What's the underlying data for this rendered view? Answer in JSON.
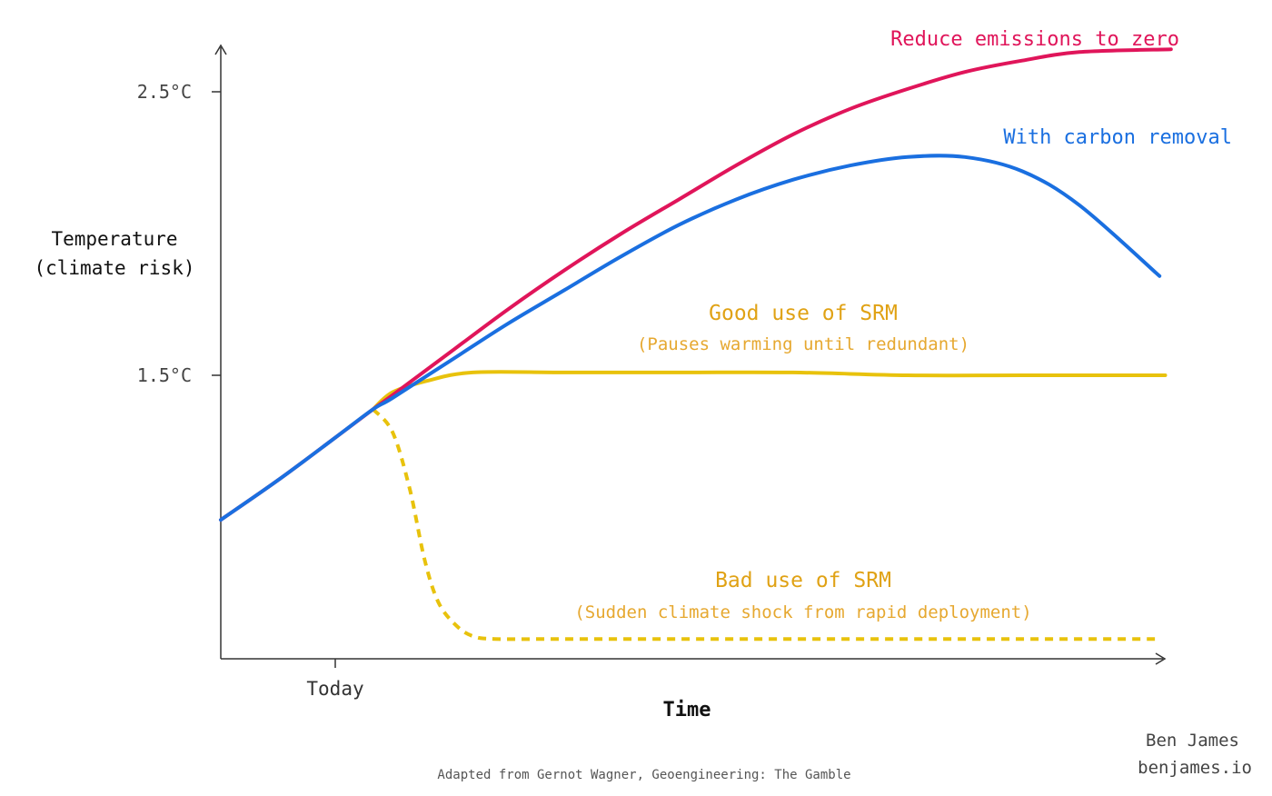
{
  "chart_data": {
    "type": "line",
    "xlabel": "Time",
    "ylabel_lines": [
      "Temperature",
      "(climate risk)"
    ],
    "x_ticks": [
      {
        "x": 0,
        "label": "Today"
      }
    ],
    "y_ticks": [
      {
        "y": 2.5,
        "label": "2.5°C"
      },
      {
        "y": 1.5,
        "label": "1.5°C"
      }
    ],
    "xlim": [
      -1,
      7.3
    ],
    "ylim": [
      0.5,
      2.65
    ],
    "series": [
      {
        "name": "Reduce emissions to zero",
        "color": "#e0155a",
        "style": "solid",
        "x": [
          -1,
          -0.5,
          0,
          0.33,
          0.5,
          1,
          1.5,
          2,
          2.5,
          3,
          3.5,
          4,
          4.5,
          5,
          5.5,
          6,
          6.5,
          7.3
        ],
        "y": [
          0.99,
          1.13,
          1.28,
          1.38,
          1.43,
          1.58,
          1.73,
          1.87,
          2.0,
          2.12,
          2.24,
          2.35,
          2.44,
          2.51,
          2.57,
          2.61,
          2.64,
          2.65
        ]
      },
      {
        "name": "With carbon removal",
        "color": "#1a6fe0",
        "style": "solid",
        "x": [
          -1,
          -0.5,
          0,
          0.33,
          0.5,
          1,
          1.5,
          2,
          2.5,
          3,
          3.5,
          4,
          4.5,
          5,
          5.5,
          6,
          6.5,
          7.2
        ],
        "y": [
          0.99,
          1.13,
          1.28,
          1.38,
          1.42,
          1.55,
          1.68,
          1.8,
          1.92,
          2.03,
          2.12,
          2.19,
          2.24,
          2.27,
          2.27,
          2.22,
          2.1,
          1.85
        ]
      },
      {
        "name": "Good use of SRM",
        "color": "#e8c20c",
        "style": "solid",
        "x": [
          0.33,
          0.5,
          0.8,
          1.2,
          2,
          3,
          4,
          5,
          6,
          7.25
        ],
        "y": [
          1.38,
          1.44,
          1.48,
          1.51,
          1.51,
          1.51,
          1.51,
          1.5,
          1.5,
          1.5
        ]
      },
      {
        "name": "Bad use of SRM",
        "color": "#e8c20c",
        "style": "dashed",
        "x": [
          0.33,
          0.5,
          0.65,
          0.78,
          0.9,
          1.05,
          1.2,
          1.4,
          2,
          3,
          4,
          5,
          6,
          7.2
        ],
        "y": [
          1.38,
          1.3,
          1.1,
          0.85,
          0.7,
          0.62,
          0.58,
          0.57,
          0.57,
          0.57,
          0.57,
          0.57,
          0.57,
          0.57
        ]
      }
    ],
    "annotations": [
      {
        "text": "Reduce emissions to zero",
        "color": "#e0155a",
        "weight": "normal"
      },
      {
        "text": "With carbon removal",
        "color": "#1a6fe0",
        "weight": "normal"
      },
      {
        "text": "Good use of SRM",
        "color": "#e0a215",
        "weight": "normal"
      },
      {
        "text": "(Pauses warming until redundant)",
        "color": "#e0a215",
        "weight": "light"
      },
      {
        "text": "Bad use of SRM",
        "color": "#e0a215",
        "weight": "normal"
      },
      {
        "text": "(Sudden climate shock from rapid deployment)",
        "color": "#e0a215",
        "weight": "light"
      }
    ],
    "grid": false,
    "legend": "none"
  },
  "credit": {
    "name": "Ben James",
    "site": "benjames.io"
  },
  "source": "Adapted from Gernot Wagner, Geoengineering: The Gamble"
}
